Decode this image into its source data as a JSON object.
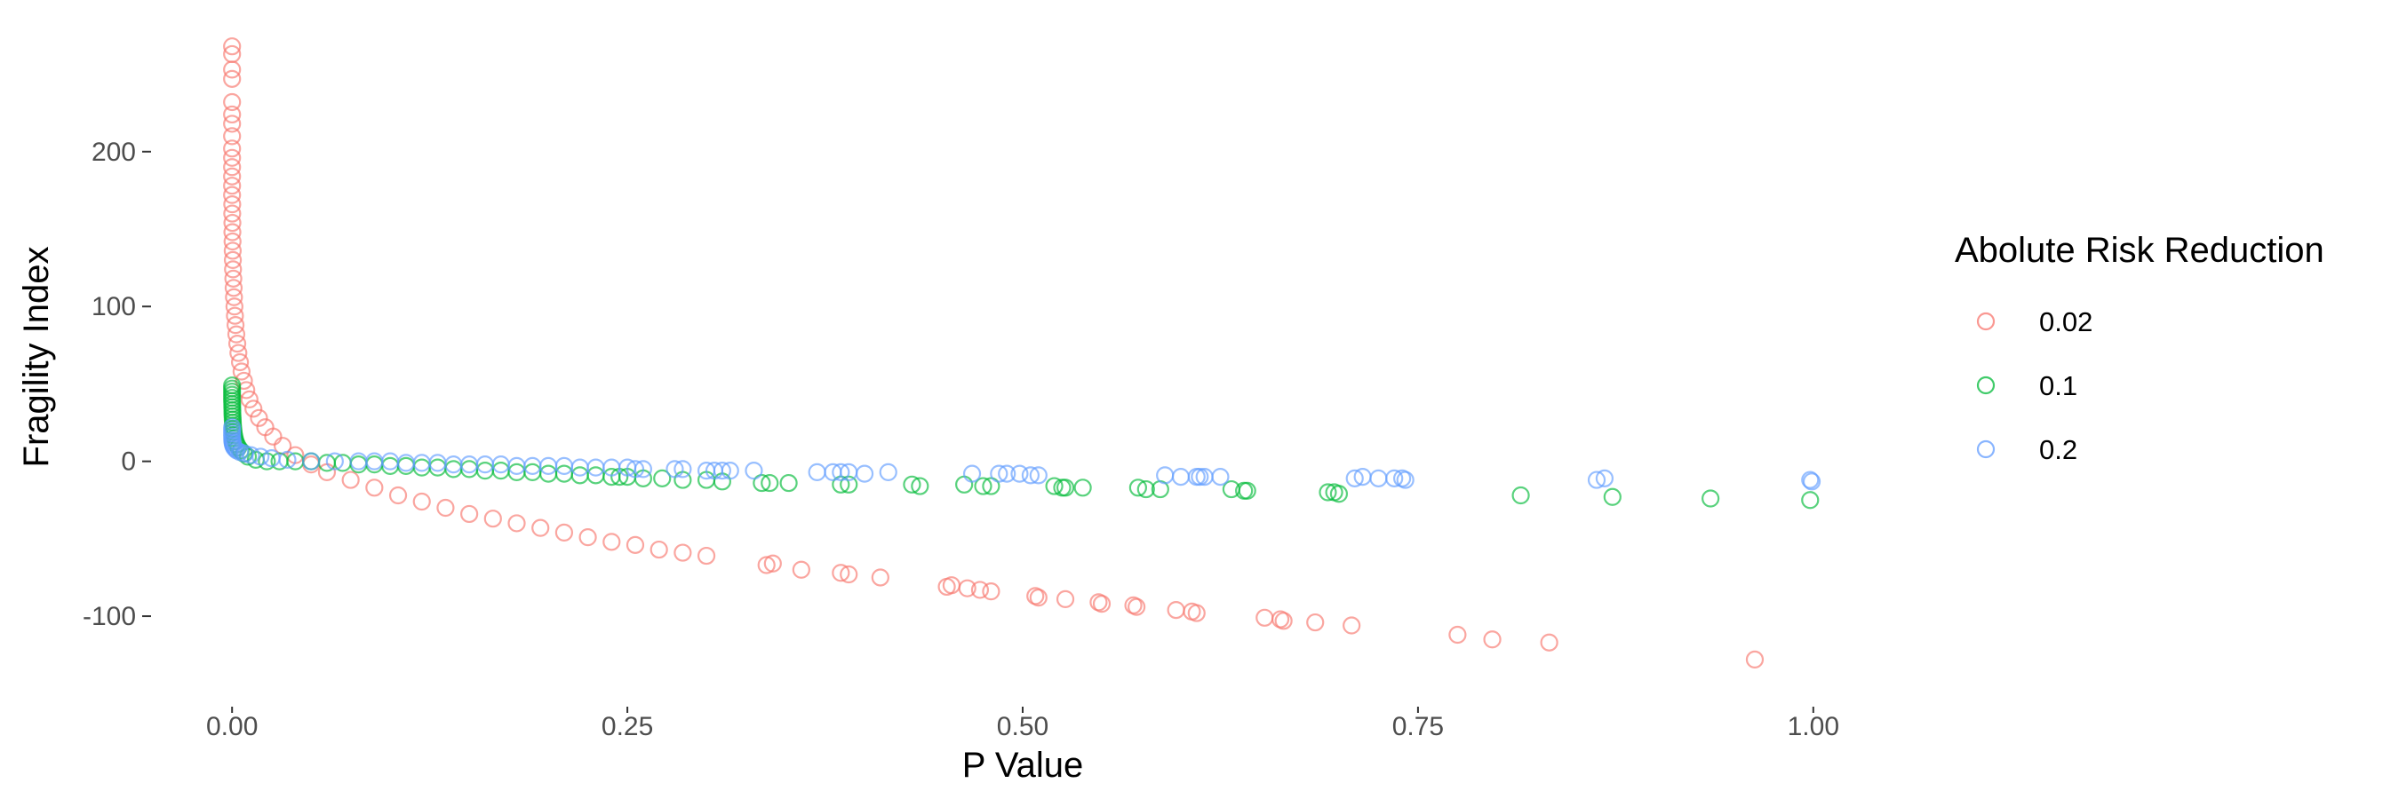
{
  "chart_data": {
    "type": "scatter",
    "title": "",
    "xlabel": "P Value",
    "ylabel": "Fragility Index",
    "xlim": [
      -0.04,
      1.04
    ],
    "ylim": [
      -155,
      275
    ],
    "x_ticks": [
      {
        "value": 0.0,
        "label": "0.00"
      },
      {
        "value": 0.25,
        "label": "0.25"
      },
      {
        "value": 0.5,
        "label": "0.50"
      },
      {
        "value": 0.75,
        "label": "0.75"
      },
      {
        "value": 1.0,
        "label": "1.00"
      }
    ],
    "y_ticks": [
      {
        "value": 200,
        "label": "200"
      },
      {
        "value": 100,
        "label": "100"
      },
      {
        "value": 0,
        "label": "0"
      },
      {
        "value": -100,
        "label": "-100"
      }
    ],
    "grid": false,
    "marker": "hollow-circle",
    "legend": {
      "title": "Abolute Risk Reduction",
      "position": "right"
    },
    "series": [
      {
        "name": "0.02",
        "color": "#F8766D",
        "points": [
          [
            0.0,
            268
          ],
          [
            0.0,
            263
          ],
          [
            0.0,
            253
          ],
          [
            0.0,
            247
          ],
          [
            0.0,
            232
          ],
          [
            0.0,
            224
          ],
          [
            0.0,
            218
          ],
          [
            0.0,
            210
          ],
          [
            0.0,
            202
          ],
          [
            0.0,
            196
          ],
          [
            0.0,
            190
          ],
          [
            0.0,
            184
          ],
          [
            0.0,
            178
          ],
          [
            0.0,
            172
          ],
          [
            0.0001,
            166
          ],
          [
            0.0001,
            160
          ],
          [
            0.0002,
            154
          ],
          [
            0.0002,
            148
          ],
          [
            0.0003,
            142
          ],
          [
            0.0004,
            136
          ],
          [
            0.0005,
            130
          ],
          [
            0.0006,
            124
          ],
          [
            0.0008,
            118
          ],
          [
            0.001,
            112
          ],
          [
            0.0012,
            106
          ],
          [
            0.0015,
            100
          ],
          [
            0.0018,
            94
          ],
          [
            0.0022,
            88
          ],
          [
            0.0027,
            82
          ],
          [
            0.0033,
            76
          ],
          [
            0.004,
            70
          ],
          [
            0.005,
            64
          ],
          [
            0.006,
            58
          ],
          [
            0.0075,
            52
          ],
          [
            0.009,
            46
          ],
          [
            0.011,
            40
          ],
          [
            0.0135,
            34
          ],
          [
            0.017,
            28
          ],
          [
            0.021,
            22
          ],
          [
            0.026,
            16
          ],
          [
            0.032,
            10
          ],
          [
            0.04,
            4
          ],
          [
            0.05,
            -2
          ],
          [
            0.06,
            -7
          ],
          [
            0.075,
            -12
          ],
          [
            0.09,
            -17
          ],
          [
            0.105,
            -22
          ],
          [
            0.12,
            -26
          ],
          [
            0.135,
            -30
          ],
          [
            0.15,
            -34
          ],
          [
            0.165,
            -37
          ],
          [
            0.18,
            -40
          ],
          [
            0.195,
            -43
          ],
          [
            0.21,
            -46
          ],
          [
            0.225,
            -49
          ],
          [
            0.24,
            -52
          ],
          [
            0.255,
            -54
          ],
          [
            0.27,
            -57
          ],
          [
            0.285,
            -59
          ],
          [
            0.3,
            -61
          ],
          [
            0.338,
            -67
          ],
          [
            0.342,
            -66
          ],
          [
            0.36,
            -70
          ],
          [
            0.385,
            -72
          ],
          [
            0.39,
            -73
          ],
          [
            0.41,
            -75
          ],
          [
            0.452,
            -81
          ],
          [
            0.455,
            -80
          ],
          [
            0.465,
            -82
          ],
          [
            0.473,
            -83
          ],
          [
            0.48,
            -84
          ],
          [
            0.508,
            -87
          ],
          [
            0.51,
            -88
          ],
          [
            0.527,
            -89
          ],
          [
            0.548,
            -91
          ],
          [
            0.55,
            -92
          ],
          [
            0.57,
            -93
          ],
          [
            0.572,
            -94
          ],
          [
            0.597,
            -96
          ],
          [
            0.607,
            -97
          ],
          [
            0.61,
            -98
          ],
          [
            0.653,
            -101
          ],
          [
            0.663,
            -102
          ],
          [
            0.665,
            -103
          ],
          [
            0.685,
            -104
          ],
          [
            0.708,
            -106
          ],
          [
            0.775,
            -112
          ],
          [
            0.797,
            -115
          ],
          [
            0.833,
            -117
          ],
          [
            0.963,
            -128
          ]
        ]
      },
      {
        "name": "0.1",
        "color": "#00BA38",
        "points": [
          [
            0.0,
            49
          ],
          [
            0.0,
            47
          ],
          [
            0.0,
            45
          ],
          [
            0.0,
            43
          ],
          [
            0.0,
            41
          ],
          [
            0.0,
            39
          ],
          [
            0.0001,
            37
          ],
          [
            0.0001,
            35
          ],
          [
            0.0002,
            33
          ],
          [
            0.0002,
            31
          ],
          [
            0.0003,
            29
          ],
          [
            0.0004,
            27
          ],
          [
            0.0005,
            25
          ],
          [
            0.0006,
            23
          ],
          [
            0.0008,
            21
          ],
          [
            0.001,
            19
          ],
          [
            0.0013,
            17
          ],
          [
            0.0017,
            15
          ],
          [
            0.0022,
            13
          ],
          [
            0.003,
            11
          ],
          [
            0.004,
            9
          ],
          [
            0.0055,
            7
          ],
          [
            0.0075,
            5
          ],
          [
            0.01,
            3
          ],
          [
            0.015,
            1
          ],
          [
            0.022,
            0
          ],
          [
            0.03,
            0
          ],
          [
            0.04,
            0
          ],
          [
            0.05,
            0
          ],
          [
            0.06,
            -1
          ],
          [
            0.07,
            -1
          ],
          [
            0.08,
            -2
          ],
          [
            0.09,
            -2
          ],
          [
            0.1,
            -3
          ],
          [
            0.11,
            -3
          ],
          [
            0.12,
            -4
          ],
          [
            0.13,
            -4
          ],
          [
            0.14,
            -5
          ],
          [
            0.15,
            -5
          ],
          [
            0.16,
            -6
          ],
          [
            0.17,
            -6
          ],
          [
            0.18,
            -7
          ],
          [
            0.19,
            -7
          ],
          [
            0.2,
            -8
          ],
          [
            0.21,
            -8
          ],
          [
            0.22,
            -9
          ],
          [
            0.23,
            -9
          ],
          [
            0.24,
            -10
          ],
          [
            0.245,
            -10
          ],
          [
            0.25,
            -10
          ],
          [
            0.26,
            -11
          ],
          [
            0.272,
            -11
          ],
          [
            0.285,
            -12
          ],
          [
            0.3,
            -12
          ],
          [
            0.31,
            -13
          ],
          [
            0.335,
            -14
          ],
          [
            0.34,
            -14
          ],
          [
            0.352,
            -14
          ],
          [
            0.385,
            -15
          ],
          [
            0.39,
            -15
          ],
          [
            0.43,
            -15
          ],
          [
            0.435,
            -16
          ],
          [
            0.463,
            -15
          ],
          [
            0.475,
            -16
          ],
          [
            0.48,
            -16
          ],
          [
            0.52,
            -16
          ],
          [
            0.525,
            -17
          ],
          [
            0.527,
            -17
          ],
          [
            0.538,
            -17
          ],
          [
            0.573,
            -17
          ],
          [
            0.578,
            -18
          ],
          [
            0.587,
            -18
          ],
          [
            0.632,
            -18
          ],
          [
            0.64,
            -19
          ],
          [
            0.642,
            -19
          ],
          [
            0.693,
            -20
          ],
          [
            0.697,
            -20
          ],
          [
            0.7,
            -21
          ],
          [
            0.815,
            -22
          ],
          [
            0.873,
            -23
          ],
          [
            0.935,
            -24
          ],
          [
            0.998,
            -25
          ]
        ]
      },
      {
        "name": "0.2",
        "color": "#619CFF",
        "points": [
          [
            0.0,
            22
          ],
          [
            0.0,
            20
          ],
          [
            0.0,
            18
          ],
          [
            0.0,
            16
          ],
          [
            0.0001,
            14
          ],
          [
            0.0002,
            13
          ],
          [
            0.0003,
            12
          ],
          [
            0.0005,
            11
          ],
          [
            0.0008,
            10
          ],
          [
            0.0012,
            9
          ],
          [
            0.002,
            8
          ],
          [
            0.003,
            7
          ],
          [
            0.005,
            6
          ],
          [
            0.008,
            5
          ],
          [
            0.012,
            4
          ],
          [
            0.018,
            3
          ],
          [
            0.025,
            2
          ],
          [
            0.035,
            1
          ],
          [
            0.05,
            0
          ],
          [
            0.065,
            0
          ],
          [
            0.08,
            0
          ],
          [
            0.09,
            0
          ],
          [
            0.1,
            0
          ],
          [
            0.11,
            -1
          ],
          [
            0.12,
            -1
          ],
          [
            0.13,
            -1
          ],
          [
            0.14,
            -2
          ],
          [
            0.15,
            -2
          ],
          [
            0.16,
            -2
          ],
          [
            0.17,
            -2
          ],
          [
            0.18,
            -3
          ],
          [
            0.19,
            -3
          ],
          [
            0.2,
            -3
          ],
          [
            0.21,
            -3
          ],
          [
            0.22,
            -4
          ],
          [
            0.23,
            -4
          ],
          [
            0.24,
            -4
          ],
          [
            0.25,
            -4
          ],
          [
            0.255,
            -5
          ],
          [
            0.26,
            -5
          ],
          [
            0.28,
            -5
          ],
          [
            0.285,
            -5
          ],
          [
            0.3,
            -6
          ],
          [
            0.305,
            -6
          ],
          [
            0.31,
            -6
          ],
          [
            0.315,
            -6
          ],
          [
            0.33,
            -6
          ],
          [
            0.37,
            -7
          ],
          [
            0.38,
            -7
          ],
          [
            0.385,
            -7
          ],
          [
            0.39,
            -7
          ],
          [
            0.4,
            -8
          ],
          [
            0.415,
            -7
          ],
          [
            0.468,
            -8
          ],
          [
            0.485,
            -8
          ],
          [
            0.49,
            -8
          ],
          [
            0.498,
            -8
          ],
          [
            0.505,
            -9
          ],
          [
            0.51,
            -9
          ],
          [
            0.59,
            -9
          ],
          [
            0.6,
            -10
          ],
          [
            0.61,
            -10
          ],
          [
            0.612,
            -10
          ],
          [
            0.615,
            -10
          ],
          [
            0.625,
            -10
          ],
          [
            0.71,
            -11
          ],
          [
            0.715,
            -10
          ],
          [
            0.725,
            -11
          ],
          [
            0.735,
            -11
          ],
          [
            0.74,
            -11
          ],
          [
            0.742,
            -12
          ],
          [
            0.863,
            -12
          ],
          [
            0.868,
            -11
          ],
          [
            0.998,
            -12
          ],
          [
            0.999,
            -13
          ]
        ]
      }
    ]
  }
}
